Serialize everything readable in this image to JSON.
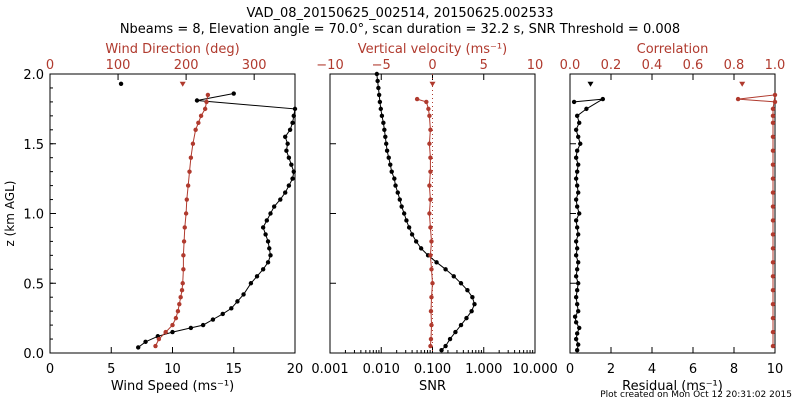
{
  "colors": {
    "primary": "#000000",
    "secondary": "#b03a2e",
    "background": "#ffffff"
  },
  "header": {
    "title_line1": "VAD_08_20150625_002514, 20150625.002533",
    "title_line2": "Nbeams = 8, Elevation angle = 70.0°, scan duration = 32.2 s, SNR Threshold = 0.008"
  },
  "footer": {
    "credit": "Plot created on Mon Oct 12 20:31:02 2015"
  },
  "chart_data": [
    {
      "type": "line",
      "name": "wind-panel",
      "ylabel": "z (km AGL)",
      "ylim": [
        0,
        2.0
      ],
      "yticks": [
        0.0,
        0.5,
        1.0,
        1.5,
        2.0
      ],
      "ytick_labels": [
        "0.0",
        "0.5",
        "1.0",
        "1.5",
        "2.0"
      ],
      "bottom_axis": {
        "label": "Wind Speed (ms⁻¹)",
        "range": [
          0,
          20
        ],
        "ticks": [
          0,
          5,
          10,
          15,
          20
        ],
        "tick_labels": [
          "0",
          "5",
          "10",
          "15",
          "20"
        ]
      },
      "top_axis": {
        "label": "Wind Direction (deg)",
        "range": [
          0,
          360
        ],
        "ticks": [
          0,
          100,
          200,
          300
        ],
        "tick_labels": [
          "0",
          "100",
          "200",
          "300"
        ]
      },
      "series": [
        {
          "name": "Wind Speed",
          "axis": "bottom",
          "color": "#000000",
          "marker": "dot",
          "line": true,
          "points": [
            [
              7.2,
              0.04
            ],
            [
              7.8,
              0.08
            ],
            [
              8.8,
              0.12
            ],
            [
              10.0,
              0.15
            ],
            [
              11.5,
              0.18
            ],
            [
              12.5,
              0.2
            ],
            [
              13.3,
              0.24
            ],
            [
              14.1,
              0.28
            ],
            [
              14.8,
              0.32
            ],
            [
              15.3,
              0.37
            ],
            [
              15.8,
              0.42
            ],
            [
              16.4,
              0.5
            ],
            [
              16.9,
              0.55
            ],
            [
              17.4,
              0.6
            ],
            [
              17.8,
              0.65
            ],
            [
              18.0,
              0.7
            ],
            [
              17.9,
              0.75
            ],
            [
              17.8,
              0.8
            ],
            [
              17.6,
              0.85
            ],
            [
              17.4,
              0.9
            ],
            [
              17.7,
              0.95
            ],
            [
              18.0,
              1.0
            ],
            [
              18.3,
              1.05
            ],
            [
              18.8,
              1.1
            ],
            [
              19.2,
              1.15
            ],
            [
              19.5,
              1.2
            ],
            [
              19.8,
              1.25
            ],
            [
              19.9,
              1.3
            ],
            [
              19.7,
              1.35
            ],
            [
              19.5,
              1.4
            ],
            [
              19.3,
              1.45
            ],
            [
              19.4,
              1.5
            ],
            [
              19.2,
              1.55
            ],
            [
              19.6,
              1.6
            ],
            [
              19.8,
              1.65
            ],
            [
              19.9,
              1.7
            ],
            [
              20.0,
              1.75
            ],
            [
              12.0,
              1.81
            ],
            [
              15.0,
              1.86
            ]
          ]
        },
        {
          "name": "Wind Direction",
          "axis": "top",
          "color": "#b03a2e",
          "marker": "dot",
          "line": true,
          "points": [
            [
              155,
              0.05
            ],
            [
              160,
              0.1
            ],
            [
              170,
              0.15
            ],
            [
              180,
              0.2
            ],
            [
              185,
              0.25
            ],
            [
              188,
              0.3
            ],
            [
              190,
              0.35
            ],
            [
              192,
              0.4
            ],
            [
              194,
              0.45
            ],
            [
              195,
              0.5
            ],
            [
              196,
              0.6
            ],
            [
              196,
              0.7
            ],
            [
              197,
              0.8
            ],
            [
              198,
              0.9
            ],
            [
              200,
              1.0
            ],
            [
              201,
              1.1
            ],
            [
              203,
              1.2
            ],
            [
              205,
              1.3
            ],
            [
              207,
              1.4
            ],
            [
              210,
              1.5
            ],
            [
              214,
              1.6
            ],
            [
              218,
              1.65
            ],
            [
              222,
              1.7
            ],
            [
              228,
              1.75
            ],
            [
              230,
              1.8
            ],
            [
              232,
              1.85
            ]
          ]
        },
        {
          "name": "Wind Speed (isolated)",
          "axis": "bottom",
          "color": "#000000",
          "marker": "dot",
          "line": false,
          "points": [
            [
              5.8,
              1.93
            ]
          ]
        },
        {
          "name": "Wind Direction (isolated)",
          "axis": "top",
          "color": "#b03a2e",
          "marker": "triangle",
          "line": false,
          "points": [
            [
              195,
              1.93
            ]
          ]
        }
      ]
    },
    {
      "type": "line",
      "name": "snr-panel",
      "ylim": [
        0,
        2.0
      ],
      "bottom_axis": {
        "label": "SNR",
        "scale": "log",
        "range": [
          0.001,
          10
        ],
        "ticks": [
          0.001,
          0.01,
          0.1,
          1,
          10
        ],
        "tick_labels": [
          "0.001",
          "0.010",
          "0.100",
          "1.000",
          "10.000"
        ]
      },
      "top_axis": {
        "label": "Vertical velocity (ms⁻¹)",
        "range": [
          -10,
          10
        ],
        "ticks": [
          -10,
          -5,
          0,
          5,
          10
        ],
        "tick_labels": [
          "−10",
          "−5",
          "0",
          "5",
          "10"
        ]
      },
      "reference_line": {
        "axis": "top",
        "value": 0,
        "style": "dotted",
        "color": "#b03a2e"
      },
      "series": [
        {
          "name": "SNR",
          "axis": "bottom",
          "color": "#000000",
          "marker": "dot",
          "line": true,
          "points": [
            [
              0.15,
              0.02
            ],
            [
              0.18,
              0.05
            ],
            [
              0.22,
              0.1
            ],
            [
              0.28,
              0.15
            ],
            [
              0.36,
              0.2
            ],
            [
              0.46,
              0.25
            ],
            [
              0.58,
              0.3
            ],
            [
              0.66,
              0.35
            ],
            [
              0.6,
              0.4
            ],
            [
              0.48,
              0.45
            ],
            [
              0.36,
              0.5
            ],
            [
              0.26,
              0.55
            ],
            [
              0.18,
              0.6
            ],
            [
              0.12,
              0.65
            ],
            [
              0.082,
              0.7
            ],
            [
              0.06,
              0.75
            ],
            [
              0.048,
              0.8
            ],
            [
              0.04,
              0.85
            ],
            [
              0.035,
              0.9
            ],
            [
              0.031,
              0.95
            ],
            [
              0.028,
              1.0
            ],
            [
              0.025,
              1.05
            ],
            [
              0.023,
              1.1
            ],
            [
              0.021,
              1.15
            ],
            [
              0.019,
              1.2
            ],
            [
              0.018,
              1.25
            ],
            [
              0.016,
              1.3
            ],
            [
              0.015,
              1.35
            ],
            [
              0.014,
              1.4
            ],
            [
              0.013,
              1.45
            ],
            [
              0.0125,
              1.5
            ],
            [
              0.012,
              1.55
            ],
            [
              0.0115,
              1.6
            ],
            [
              0.011,
              1.65
            ],
            [
              0.0103,
              1.7
            ],
            [
              0.0098,
              1.75
            ],
            [
              0.0094,
              1.8
            ],
            [
              0.0091,
              1.85
            ],
            [
              0.0088,
              1.9
            ],
            [
              0.0085,
              1.95
            ],
            [
              0.0082,
              2.0
            ]
          ]
        },
        {
          "name": "Vertical velocity",
          "axis": "top",
          "color": "#b03a2e",
          "marker": "dot",
          "line": true,
          "points": [
            [
              -0.2,
              0.05
            ],
            [
              -0.15,
              0.1
            ],
            [
              -0.1,
              0.2
            ],
            [
              -0.15,
              0.3
            ],
            [
              -0.1,
              0.4
            ],
            [
              0.0,
              0.5
            ],
            [
              -0.1,
              0.6
            ],
            [
              -0.2,
              0.7
            ],
            [
              -0.1,
              0.8
            ],
            [
              -0.2,
              0.9
            ],
            [
              -0.3,
              1.0
            ],
            [
              -0.2,
              1.1
            ],
            [
              -0.3,
              1.2
            ],
            [
              -0.2,
              1.3
            ],
            [
              -0.2,
              1.4
            ],
            [
              -0.3,
              1.5
            ],
            [
              -0.2,
              1.6
            ],
            [
              -0.3,
              1.7
            ],
            [
              -0.4,
              1.75
            ],
            [
              -0.6,
              1.8
            ],
            [
              -1.5,
              1.82
            ]
          ]
        },
        {
          "name": "Vertical velocity (isolated)",
          "axis": "top",
          "color": "#b03a2e",
          "marker": "triangle",
          "line": false,
          "points": [
            [
              0.0,
              1.93
            ]
          ]
        }
      ]
    },
    {
      "type": "line",
      "name": "residual-panel",
      "ylim": [
        0,
        2.0
      ],
      "bottom_axis": {
        "label": "Residual (ms⁻¹)",
        "range": [
          0,
          10
        ],
        "ticks": [
          0,
          2,
          4,
          6,
          8,
          10
        ],
        "tick_labels": [
          "0",
          "2",
          "4",
          "6",
          "8",
          "10"
        ]
      },
      "top_axis": {
        "label": "Correlation",
        "range": [
          0,
          1.0
        ],
        "ticks": [
          0.0,
          0.2,
          0.4,
          0.6,
          0.8,
          1.0
        ],
        "tick_labels": [
          "0.0",
          "0.2",
          "0.4",
          "0.6",
          "0.8",
          "1.0"
        ]
      },
      "series": [
        {
          "name": "Residual",
          "axis": "bottom",
          "color": "#000000",
          "marker": "dot",
          "line": true,
          "points": [
            [
              0.35,
              0.02
            ],
            [
              0.4,
              0.06
            ],
            [
              0.3,
              0.1
            ],
            [
              0.35,
              0.14
            ],
            [
              0.45,
              0.18
            ],
            [
              0.3,
              0.22
            ],
            [
              0.25,
              0.26
            ],
            [
              0.4,
              0.3
            ],
            [
              0.35,
              0.35
            ],
            [
              0.3,
              0.4
            ],
            [
              0.35,
              0.45
            ],
            [
              0.4,
              0.5
            ],
            [
              0.3,
              0.55
            ],
            [
              0.35,
              0.6
            ],
            [
              0.4,
              0.65
            ],
            [
              0.3,
              0.7
            ],
            [
              0.35,
              0.75
            ],
            [
              0.3,
              0.8
            ],
            [
              0.4,
              0.85
            ],
            [
              0.35,
              0.9
            ],
            [
              0.3,
              0.95
            ],
            [
              0.45,
              1.0
            ],
            [
              0.35,
              1.05
            ],
            [
              0.3,
              1.1
            ],
            [
              0.4,
              1.15
            ],
            [
              0.35,
              1.2
            ],
            [
              0.3,
              1.25
            ],
            [
              0.35,
              1.3
            ],
            [
              0.4,
              1.35
            ],
            [
              0.3,
              1.4
            ],
            [
              0.35,
              1.45
            ],
            [
              0.5,
              1.5
            ],
            [
              0.4,
              1.55
            ],
            [
              0.3,
              1.6
            ],
            [
              0.45,
              1.65
            ],
            [
              0.35,
              1.7
            ],
            [
              0.8,
              1.75
            ],
            [
              1.6,
              1.82
            ],
            [
              0.2,
              1.8
            ]
          ]
        },
        {
          "name": "Correlation",
          "axis": "top",
          "color": "#b03a2e",
          "marker": "dot",
          "line": true,
          "points": [
            [
              0.99,
              0.05
            ],
            [
              0.99,
              0.15
            ],
            [
              0.99,
              0.25
            ],
            [
              0.99,
              0.35
            ],
            [
              0.99,
              0.45
            ],
            [
              0.99,
              0.55
            ],
            [
              0.99,
              0.65
            ],
            [
              0.99,
              0.75
            ],
            [
              0.99,
              0.85
            ],
            [
              0.99,
              0.95
            ],
            [
              0.99,
              1.05
            ],
            [
              0.99,
              1.15
            ],
            [
              0.99,
              1.25
            ],
            [
              0.99,
              1.35
            ],
            [
              0.99,
              1.45
            ],
            [
              0.99,
              1.55
            ],
            [
              0.99,
              1.65
            ],
            [
              0.99,
              1.7
            ],
            [
              0.99,
              1.75
            ],
            [
              1.0,
              1.85
            ],
            [
              0.82,
              1.82
            ],
            [
              1.0,
              1.8
            ]
          ]
        },
        {
          "name": "Residual (isolated)",
          "axis": "bottom",
          "color": "#000000",
          "marker": "triangle",
          "line": false,
          "points": [
            [
              1.0,
              1.93
            ]
          ]
        },
        {
          "name": "Correlation (isolated)",
          "axis": "top",
          "color": "#b03a2e",
          "marker": "triangle",
          "line": false,
          "points": [
            [
              0.84,
              1.93
            ]
          ]
        }
      ]
    }
  ]
}
